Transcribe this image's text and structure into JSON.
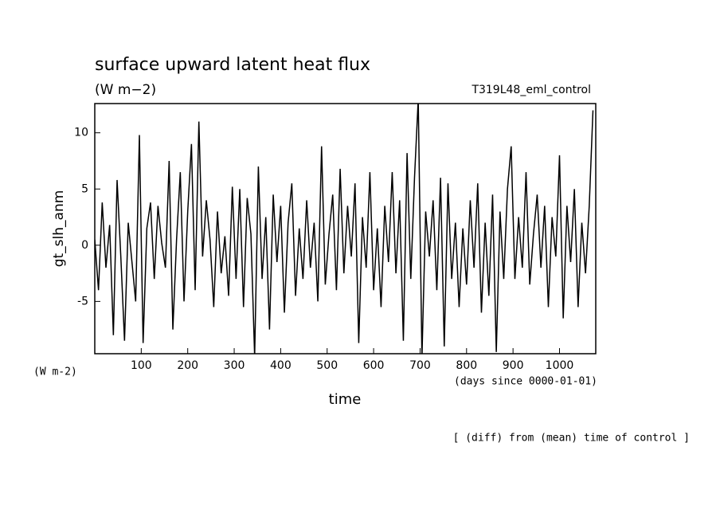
{
  "chart_data": {
    "type": "line",
    "title": "surface upward latent heat flux",
    "subtitle": "(W m−2)",
    "experiment": "T319L48_eml_control",
    "y_label": "gt_slh_anm",
    "y_unit_label": "(W m-2)",
    "x_label": "time",
    "x_unit_label": "(days since 0000-01-01)",
    "footnote": "[ (diff) from (mean) time of control ]",
    "xlim": [
      0,
      1078
    ],
    "ylim": [
      -9.65,
      12.6
    ],
    "xticks": [
      100,
      200,
      300,
      400,
      500,
      600,
      700,
      800,
      900,
      1000
    ],
    "yticks": [
      -5,
      0,
      5,
      10
    ],
    "x": [
      0,
      8,
      16,
      24,
      32,
      40,
      48,
      56,
      64,
      72,
      80,
      88,
      96,
      104,
      112,
      120,
      128,
      136,
      144,
      152,
      160,
      168,
      176,
      184,
      192,
      200,
      208,
      216,
      224,
      232,
      240,
      248,
      256,
      264,
      272,
      280,
      288,
      296,
      304,
      312,
      320,
      328,
      336,
      344,
      352,
      360,
      368,
      376,
      384,
      392,
      400,
      408,
      416,
      424,
      432,
      440,
      448,
      456,
      464,
      472,
      480,
      488,
      496,
      504,
      512,
      520,
      528,
      536,
      544,
      552,
      560,
      568,
      576,
      584,
      592,
      600,
      608,
      616,
      624,
      632,
      640,
      648,
      656,
      664,
      672,
      680,
      688,
      696,
      704,
      712,
      720,
      728,
      736,
      744,
      752,
      760,
      768,
      776,
      784,
      792,
      800,
      808,
      816,
      824,
      832,
      840,
      848,
      856,
      864,
      872,
      880,
      888,
      896,
      904,
      912,
      920,
      928,
      936,
      944,
      952,
      960,
      968,
      976,
      984,
      992,
      1000,
      1008,
      1016,
      1024,
      1032,
      1040,
      1048,
      1056,
      1064,
      1072
    ],
    "series": [
      {
        "color": "#000000",
        "values": [
          0.5,
          -4.0,
          3.8,
          -2.0,
          1.8,
          -8.0,
          5.8,
          -1.0,
          -8.5,
          2.0,
          -1.5,
          -5.0,
          9.8,
          -8.7,
          1.5,
          3.8,
          -3.0,
          3.5,
          0.2,
          -2.0,
          7.5,
          -7.5,
          0.5,
          6.5,
          -5.0,
          3.0,
          9.0,
          -4.0,
          11.0,
          -1.0,
          4.0,
          0.5,
          -5.5,
          3.0,
          -2.5,
          0.8,
          -4.5,
          5.2,
          -3.0,
          5.0,
          -5.5,
          4.2,
          1.0,
          -9.9,
          7.0,
          -3.0,
          2.5,
          -7.5,
          4.5,
          -1.5,
          3.5,
          -6.0,
          2.0,
          5.5,
          -4.5,
          1.5,
          -3.0,
          4.0,
          -2.0,
          2.0,
          -5.0,
          8.8,
          -3.5,
          1.0,
          4.5,
          -4.0,
          6.8,
          -2.5,
          3.5,
          -1.0,
          5.5,
          -8.7,
          2.5,
          -2.0,
          6.5,
          -4.0,
          1.5,
          -5.5,
          3.5,
          -1.5,
          6.5,
          -2.5,
          4.0,
          -8.5,
          8.2,
          -3.0,
          6.0,
          13.0,
          -10.0,
          3.0,
          -1.0,
          4.0,
          -4.0,
          6.0,
          -9.0,
          5.5,
          -3.0,
          2.0,
          -5.5,
          1.5,
          -3.5,
          4.0,
          -2.0,
          5.5,
          -6.0,
          2.0,
          -4.5,
          4.5,
          -9.5,
          3.0,
          -3.0,
          5.0,
          8.8,
          -3.0,
          2.5,
          -2.0,
          6.5,
          -3.5,
          1.0,
          4.5,
          -2.0,
          3.5,
          -5.5,
          2.5,
          -1.0,
          8.0,
          -6.5,
          3.5,
          -1.5,
          5.0,
          -5.5,
          2.0,
          -2.5,
          3.5,
          12.0
        ]
      }
    ]
  }
}
